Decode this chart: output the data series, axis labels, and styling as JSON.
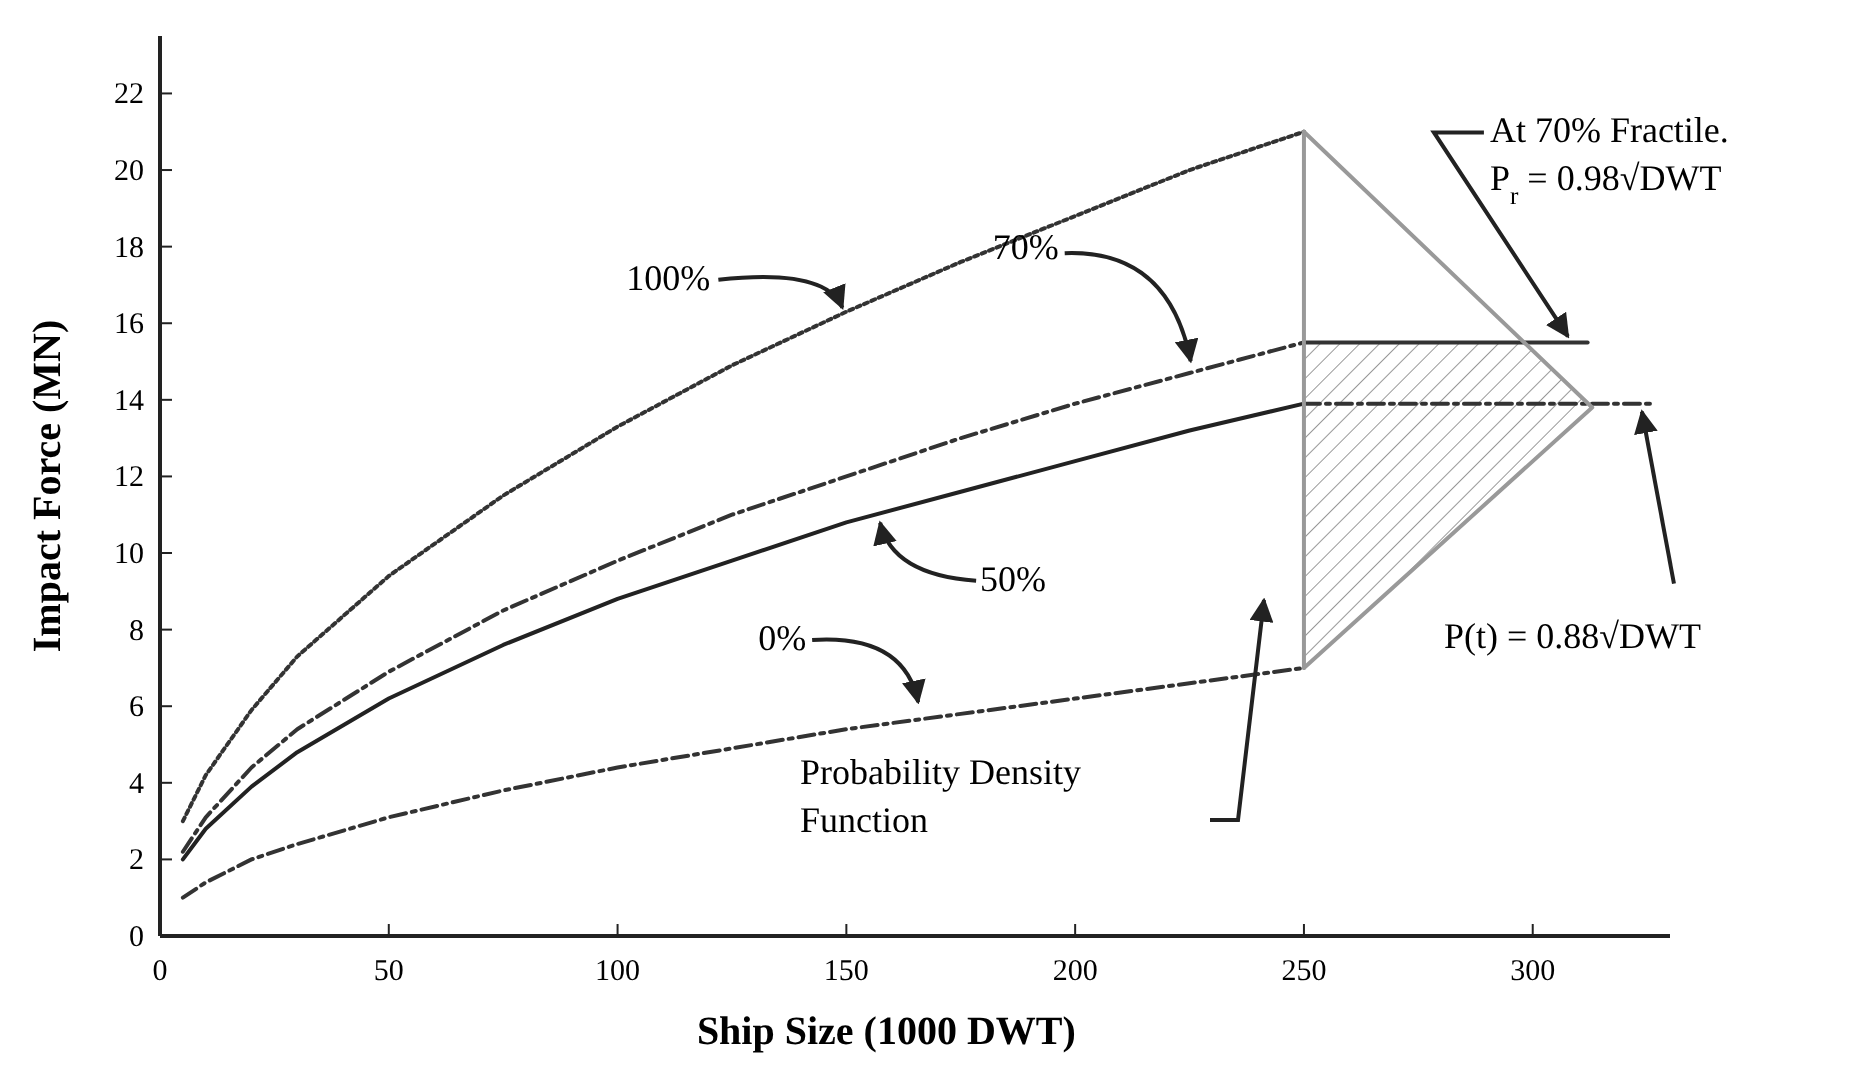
{
  "chart_data": {
    "type": "line",
    "xlabel": "Ship Size (1000 DWT)",
    "ylabel": "Impact Force (MN)",
    "xlim": [
      0,
      330
    ],
    "xticks": [
      0,
      50,
      100,
      150,
      200,
      250,
      300
    ],
    "ylim": [
      0,
      23.5
    ],
    "yticks": [
      0,
      2,
      4,
      6,
      8,
      10,
      12,
      14,
      16,
      18,
      20,
      22
    ],
    "grid": false,
    "x": [
      5,
      10,
      20,
      30,
      50,
      75,
      100,
      125,
      150,
      175,
      200,
      225,
      250
    ],
    "series": [
      {
        "color": "#333333",
        "line_style": "dotted",
        "values": [
          3.0,
          4.2,
          5.9,
          7.3,
          9.4,
          11.5,
          13.3,
          14.9,
          16.3,
          17.6,
          18.8,
          20.0,
          21.0
        ]
      },
      {
        "color": "#333333",
        "line_style": "dashed",
        "values": [
          2.2,
          3.1,
          4.4,
          5.4,
          6.9,
          8.5,
          9.8,
          11.0,
          12.0,
          13.0,
          13.9,
          14.7,
          15.5
        ]
      },
      {
        "color": "#222222",
        "line_style": "solid",
        "values": [
          2.0,
          2.8,
          3.9,
          4.8,
          6.2,
          7.6,
          8.8,
          9.8,
          10.8,
          11.6,
          12.4,
          13.2,
          13.9
        ]
      },
      {
        "color": "#333333",
        "line_style": "dashed",
        "values": [
          1.0,
          1.4,
          2.0,
          2.4,
          3.1,
          3.8,
          4.4,
          4.9,
          5.4,
          5.8,
          6.2,
          6.6,
          7.0
        ]
      },
      {
        "color": "#333333",
        "line_style": "solid",
        "x": [
          250,
          312
        ],
        "values": [
          15.5,
          15.5
        ]
      },
      {
        "color": "#333333",
        "line_style": "dashed",
        "x": [
          250,
          326
        ],
        "values": [
          13.9,
          13.9
        ]
      },
      {
        "color": "#999999",
        "line_style": "solid",
        "x": [
          250,
          313,
          250
        ],
        "values": [
          21.0,
          13.8,
          7.0
        ]
      },
      {
        "color": "#999999",
        "line_style": "solid",
        "x": [
          250,
          250
        ],
        "values": [
          7.0,
          21.0
        ]
      }
    ],
    "annotations": [
      {
        "text": "100%",
        "x": 150,
        "y": 16.3
      },
      {
        "text": "70%",
        "x": 227,
        "y": 14.8
      },
      {
        "text": "50%",
        "x": 160,
        "y": 11.0
      },
      {
        "text": "0%",
        "x": 167,
        "y": 5.9
      },
      "Probability Density\nFunction",
      {
        "text": "At 70% Fractile.\nP$_{r}$ = 0.98√DWT",
        "x": 309,
        "y": 15.5
      },
      {
        "text": "P(t) = 0.88√DWT",
        "x": 323,
        "y": 13.9
      }
    ]
  }
}
